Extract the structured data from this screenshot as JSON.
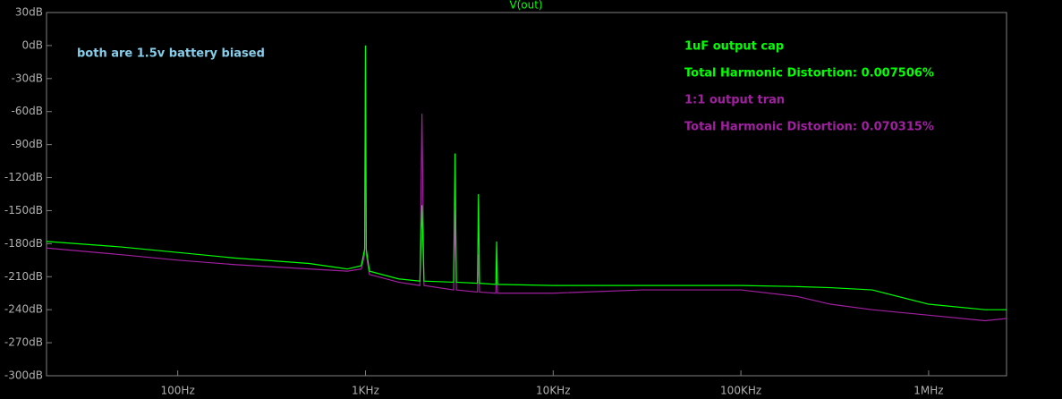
{
  "chart_data": {
    "type": "line",
    "title": "V(out)",
    "title_color": "#00ff00",
    "log_x": true,
    "xlim": [
      20,
      2600000
    ],
    "xticks": [
      {
        "value": 100,
        "label": "100Hz"
      },
      {
        "value": 1000,
        "label": "1KHz"
      },
      {
        "value": 10000,
        "label": "10KHz"
      },
      {
        "value": 100000,
        "label": "100KHz"
      },
      {
        "value": 1000000,
        "label": "1MHz"
      }
    ],
    "ylim": [
      -300,
      30
    ],
    "yticks": [
      {
        "value": 30,
        "label": "30dB"
      },
      {
        "value": 0,
        "label": "0dB"
      },
      {
        "value": -30,
        "label": "-30dB"
      },
      {
        "value": -60,
        "label": "-60dB"
      },
      {
        "value": -90,
        "label": "-90dB"
      },
      {
        "value": -120,
        "label": "-120dB"
      },
      {
        "value": -150,
        "label": "-150dB"
      },
      {
        "value": -180,
        "label": "-180dB"
      },
      {
        "value": -210,
        "label": "-210dB"
      },
      {
        "value": -240,
        "label": "-240dB"
      },
      {
        "value": -270,
        "label": "-270dB"
      },
      {
        "value": -300,
        "label": "-300dB"
      }
    ],
    "annotation": {
      "text": "both are 1.5v battery biased",
      "color": "#87ceeb"
    },
    "x": [
      20,
      50,
      100,
      200,
      500,
      800,
      950,
      990,
      1000,
      1010,
      1050,
      1500,
      1950,
      2000,
      2050,
      2950,
      3000,
      3050,
      3950,
      4000,
      4050,
      4950,
      5000,
      5050,
      10000,
      30000,
      100000,
      200000,
      300000,
      500000,
      1000000,
      2000000,
      2600000
    ],
    "series": [
      {
        "name": "1:1 output tran",
        "thd_label": "Total Harmonic Distortion: 0.070315%",
        "color": "#a020a0",
        "values": [
          -184,
          -190,
          -195,
          -199,
          -203,
          -205,
          -203,
          -190,
          0,
          -190,
          -208,
          -215,
          -218,
          -62,
          -218,
          -222,
          -150,
          -222,
          -224,
          -190,
          -224,
          -225,
          -200,
          -225,
          -225,
          -222,
          -222,
          -228,
          -235,
          -240,
          -245,
          -250,
          -248
        ]
      },
      {
        "name": "1uF output cap",
        "thd_label": "Total Harmonic Distortion: 0.007506%",
        "color": "#00ff00",
        "values": [
          -178,
          -183,
          -188,
          -193,
          -198,
          -203,
          -200,
          -185,
          0,
          -185,
          -205,
          -212,
          -214,
          -145,
          -214,
          -215,
          -98,
          -215,
          -216,
          -135,
          -216,
          -217,
          -178,
          -217,
          -218,
          -218,
          -218,
          -219,
          -220,
          -222,
          -235,
          -240,
          -240
        ]
      }
    ]
  }
}
